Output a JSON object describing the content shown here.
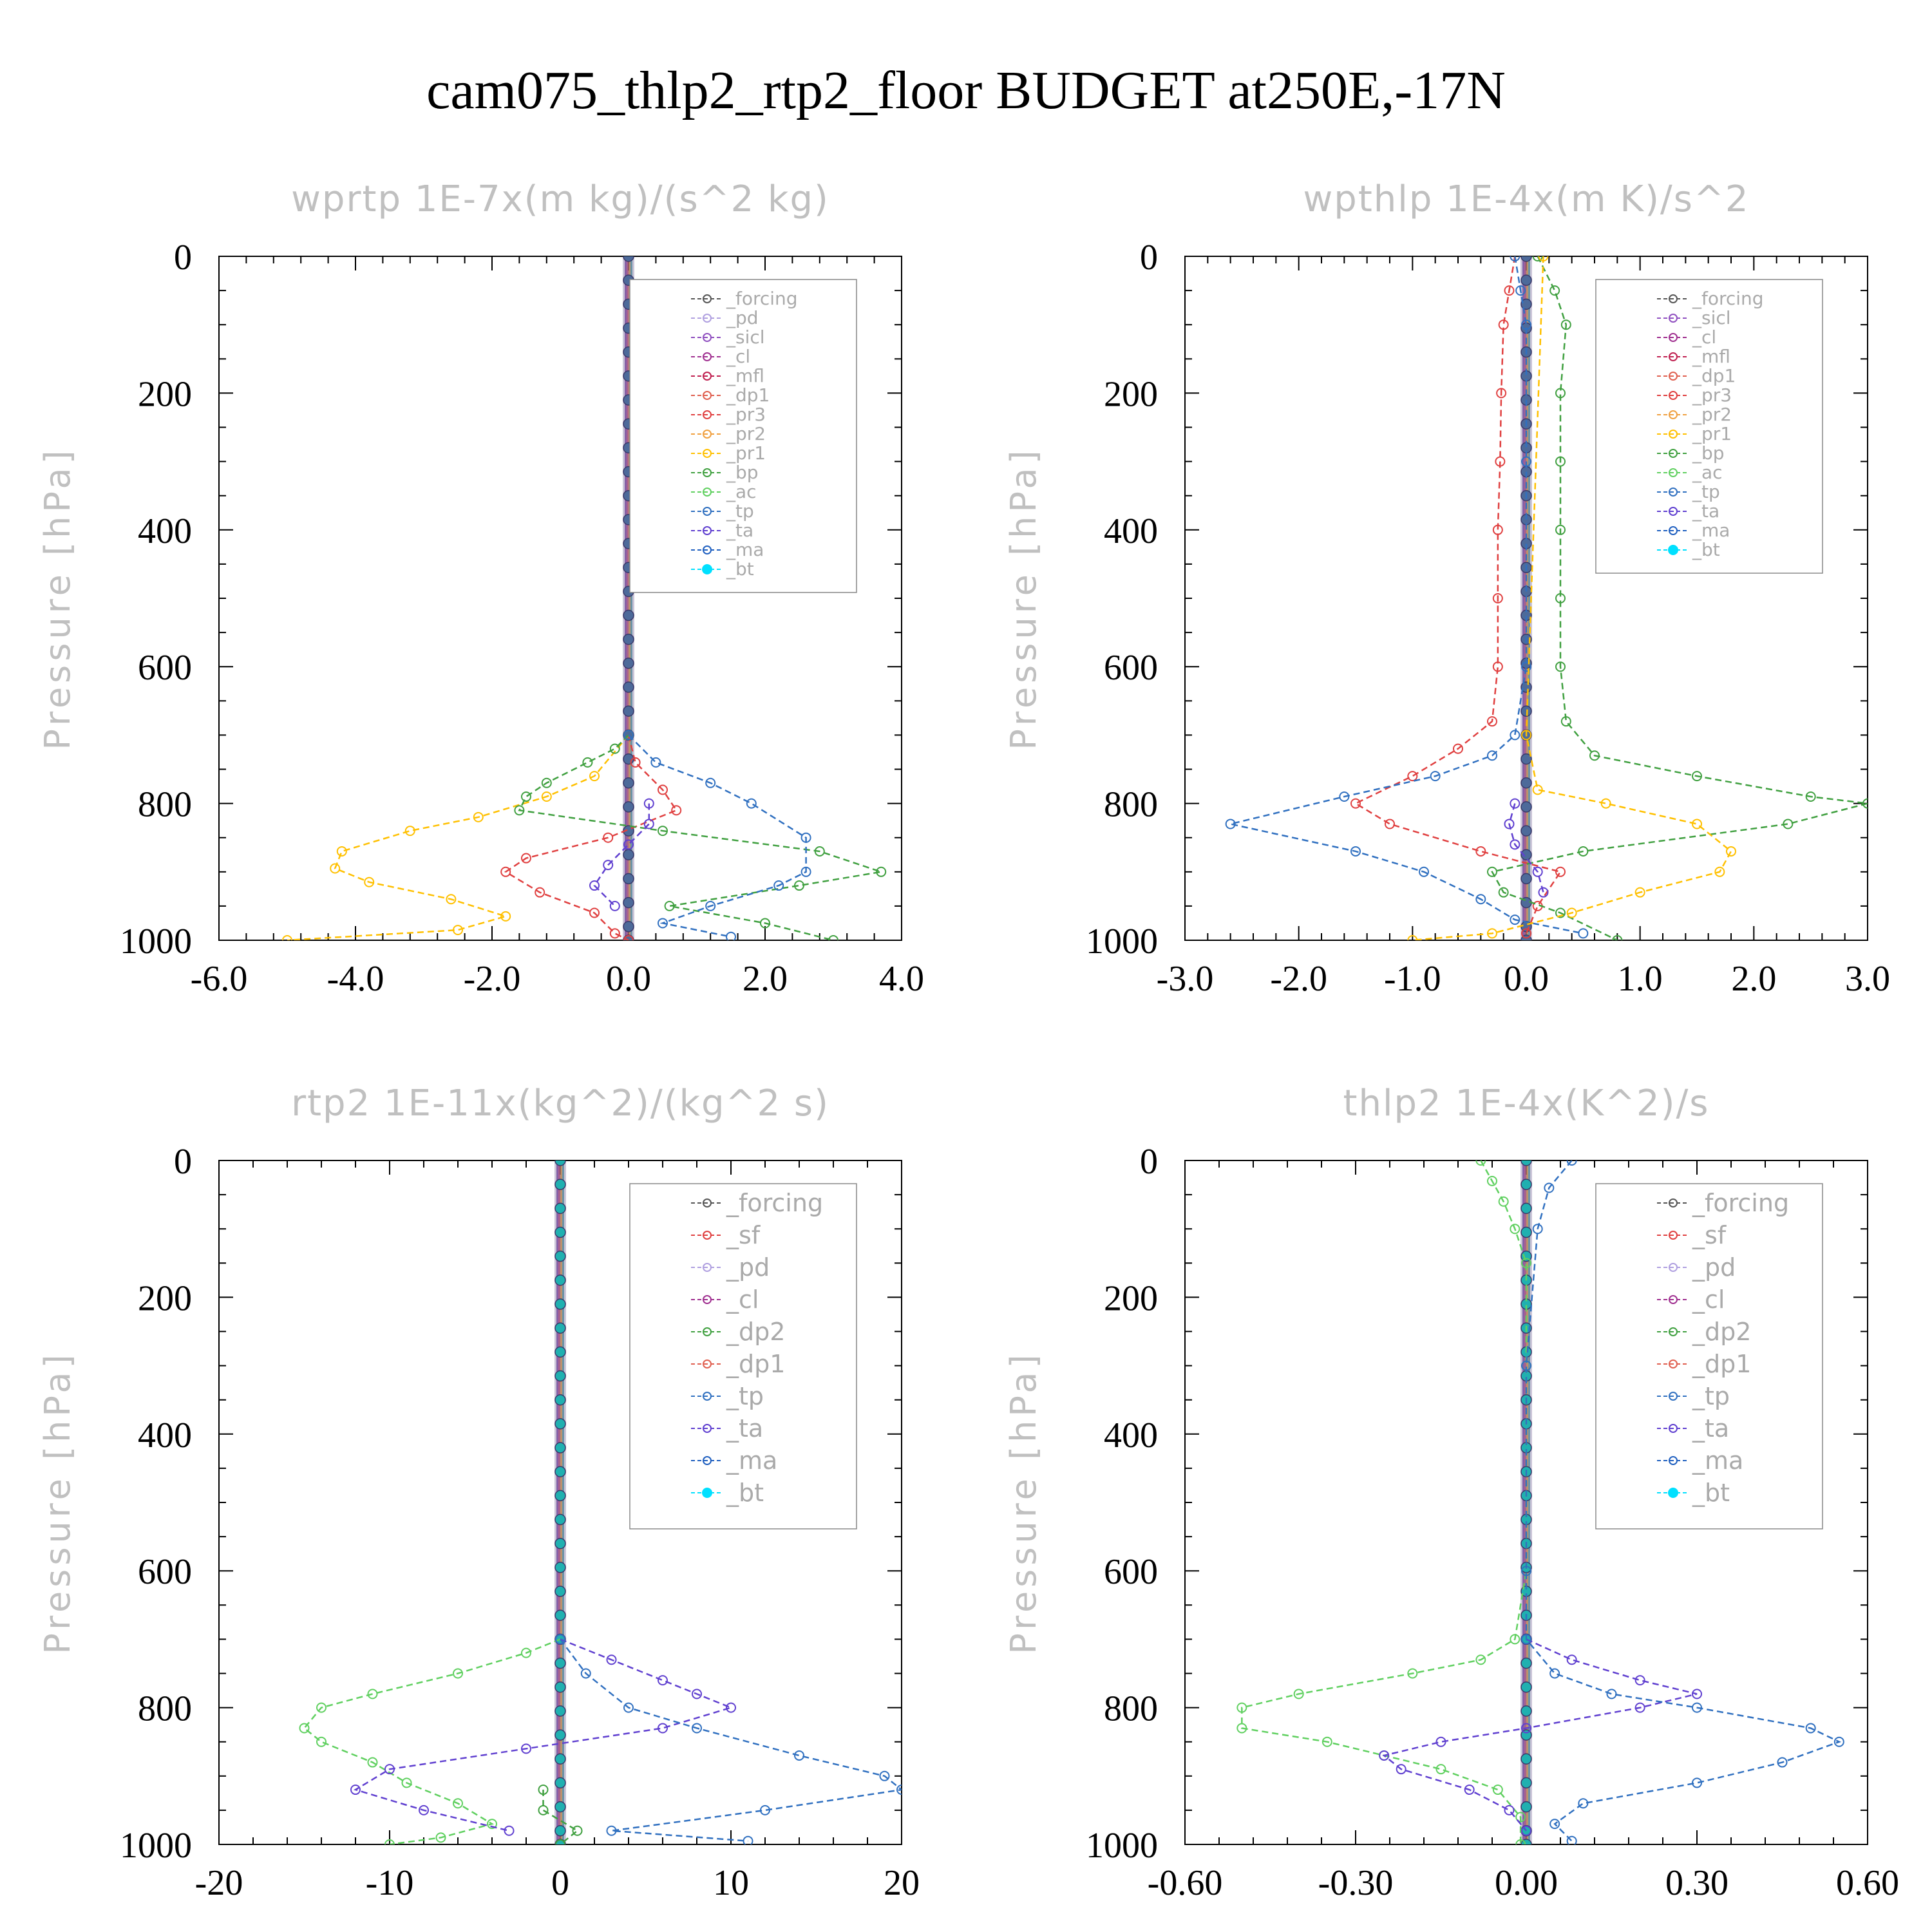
{
  "figure": {
    "title": "cam075_thlp2_rtp2_floor  BUDGET at250E,-17N"
  },
  "chart_data": [
    {
      "type": "line",
      "title": "wprtp   1E-7x(m kg)/(s^2 kg)",
      "ylabel": "Pressure [hPa]",
      "xlim": [
        -6.0,
        4.0
      ],
      "ylim": [
        0,
        1000
      ],
      "y_inverted": true,
      "xticks": [
        "-6.0",
        "-4.0",
        "-2.0",
        "0.0",
        "2.0",
        "4.0"
      ],
      "yticks": [
        "0",
        "200",
        "400",
        "600",
        "800",
        "1000"
      ],
      "legend": {
        "position": "upper-right",
        "entries": [
          "_forcing",
          "_pd",
          "_sicl",
          "_cl",
          "_mfl",
          "_dp1",
          "_pr3",
          "_pr2",
          "_pr1",
          "_bp",
          "_ac",
          "_tp",
          "_ta",
          "_ma",
          "_bt"
        ]
      },
      "series": [
        {
          "name": "_pr1",
          "color": "#ffc000",
          "y": [
            700,
            760,
            790,
            820,
            840,
            870,
            895,
            915,
            940,
            965,
            985,
            1000
          ],
          "values": [
            0,
            -0.5,
            -1.2,
            -2.2,
            -3.2,
            -4.2,
            -4.3,
            -3.8,
            -2.6,
            -1.8,
            -2.5,
            -5.0
          ]
        },
        {
          "name": "_pr3",
          "color": "#e04040",
          "y": [
            700,
            740,
            780,
            810,
            850,
            880,
            900,
            930,
            960,
            990,
            1000
          ],
          "values": [
            0,
            0.1,
            0.5,
            0.7,
            -0.3,
            -1.5,
            -1.8,
            -1.3,
            -0.5,
            -0.2,
            0
          ]
        },
        {
          "name": "_bp",
          "color": "#40a040",
          "y": [
            700,
            720,
            740,
            770,
            790,
            810,
            840,
            870,
            900,
            920,
            950,
            975,
            1000
          ],
          "values": [
            0,
            -0.2,
            -0.6,
            -1.2,
            -1.5,
            -1.6,
            0.5,
            2.8,
            3.7,
            2.5,
            0.6,
            2.0,
            3.0
          ]
        },
        {
          "name": "_tp",
          "color": "#3070c0",
          "y": [
            700,
            740,
            770,
            800,
            850,
            900,
            920,
            950,
            975,
            995
          ],
          "values": [
            0,
            0.4,
            1.2,
            1.8,
            2.6,
            2.6,
            2.2,
            1.2,
            0.5,
            1.5
          ]
        },
        {
          "name": "_ta",
          "color": "#6040d0",
          "y": [
            800,
            830,
            860,
            890,
            920,
            950
          ],
          "values": [
            0.3,
            0.3,
            0,
            -0.3,
            -0.5,
            -0.2
          ]
        }
      ]
    },
    {
      "type": "line",
      "title": "wpthlp   1E-4x(m K)/s^2",
      "ylabel": "Pressure [hPa]",
      "xlim": [
        -3.0,
        3.0
      ],
      "ylim": [
        0,
        1000
      ],
      "y_inverted": true,
      "xticks": [
        "-3.0",
        "-2.0",
        "-1.0",
        "0.0",
        "1.0",
        "2.0",
        "3.0"
      ],
      "yticks": [
        "0",
        "200",
        "400",
        "600",
        "800",
        "1000"
      ],
      "legend": {
        "position": "upper-right",
        "entries": [
          "_forcing",
          "_sicl",
          "_cl",
          "_mfl",
          "_dp1",
          "_pr3",
          "_pr2",
          "_pr1",
          "_bp",
          "_ac",
          "_tp",
          "_ta",
          "_ma",
          "_bt"
        ]
      },
      "series": [
        {
          "name": "_pr3",
          "color": "#e04040",
          "y": [
            0,
            50,
            100,
            200,
            300,
            400,
            500,
            600,
            680,
            720,
            760,
            800,
            830,
            870,
            900,
            950,
            990
          ],
          "values": [
            -0.1,
            -0.15,
            -0.2,
            -0.22,
            -0.23,
            -0.25,
            -0.25,
            -0.25,
            -0.3,
            -0.6,
            -1.0,
            -1.5,
            -1.2,
            -0.4,
            0.3,
            0.1,
            0
          ]
        },
        {
          "name": "_bp",
          "color": "#40a040",
          "y": [
            0,
            50,
            100,
            200,
            300,
            400,
            500,
            600,
            680,
            730,
            760,
            790,
            800,
            830,
            870,
            900,
            930,
            960,
            1000
          ],
          "values": [
            0.1,
            0.25,
            0.35,
            0.3,
            0.3,
            0.3,
            0.3,
            0.3,
            0.35,
            0.6,
            1.5,
            2.5,
            3.0,
            2.3,
            0.5,
            -0.3,
            -0.2,
            0.3,
            0.8
          ]
        },
        {
          "name": "_tp",
          "color": "#3070c0",
          "y": [
            0,
            50,
            100,
            300,
            600,
            700,
            730,
            760,
            790,
            830,
            870,
            900,
            940,
            970,
            990
          ],
          "values": [
            -0.1,
            -0.05,
            0,
            0,
            0,
            -0.1,
            -0.3,
            -0.8,
            -1.6,
            -2.6,
            -1.5,
            -0.9,
            -0.4,
            -0.1,
            0.5
          ]
        },
        {
          "name": "_pr1",
          "color": "#ffc000",
          "y": [
            0,
            700,
            780,
            800,
            830,
            870,
            900,
            930,
            960,
            990,
            1000
          ],
          "values": [
            0.15,
            0,
            0.1,
            0.7,
            1.5,
            1.8,
            1.7,
            1.0,
            0.4,
            -0.3,
            -1.0
          ]
        },
        {
          "name": "_ta",
          "color": "#6040d0",
          "y": [
            800,
            830,
            860,
            900,
            930
          ],
          "values": [
            -0.1,
            -0.15,
            -0.1,
            0.1,
            0.15
          ]
        }
      ]
    },
    {
      "type": "line",
      "title": "rtp2   1E-11x(kg^2)/(kg^2 s)",
      "ylabel": "Pressure [hPa]",
      "xlim": [
        -20,
        20
      ],
      "ylim": [
        0,
        1000
      ],
      "y_inverted": true,
      "xticks": [
        "-20",
        "-10",
        "0",
        "10",
        "20"
      ],
      "yticks": [
        "0",
        "200",
        "400",
        "600",
        "800",
        "1000"
      ],
      "legend": {
        "position": "upper-right",
        "entries": [
          "_forcing",
          "_sf",
          "_pd",
          "_cl",
          "_dp2",
          "_dp1",
          "_tp",
          "_ta",
          "_ma",
          "_bt"
        ]
      },
      "series": [
        {
          "name": "_dp1",
          "color": "#60d060",
          "y": [
            700,
            720,
            750,
            780,
            800,
            830,
            850,
            880,
            910,
            940,
            970,
            990,
            1000
          ],
          "values": [
            0,
            -2,
            -6,
            -11,
            -14,
            -15,
            -14,
            -11,
            -9,
            -6,
            -4,
            -7,
            -10
          ]
        },
        {
          "name": "_ta",
          "color": "#6040d0",
          "y": [
            700,
            730,
            760,
            780,
            800,
            830,
            860,
            890,
            920,
            950,
            980
          ],
          "values": [
            0,
            3,
            6,
            8,
            10,
            6,
            -2,
            -10,
            -12,
            -8,
            -3
          ]
        },
        {
          "name": "_tp",
          "color": "#3070c0",
          "y": [
            700,
            750,
            800,
            830,
            870,
            900,
            920,
            950,
            980,
            995
          ],
          "values": [
            0,
            1.5,
            4,
            8,
            14,
            19,
            20,
            12,
            3,
            11
          ]
        },
        {
          "name": "_dp2",
          "color": "#40a040",
          "y": [
            920,
            950,
            980,
            1000
          ],
          "values": [
            -1,
            -1,
            1,
            0
          ]
        }
      ]
    },
    {
      "type": "line",
      "title": "thlp2   1E-4x(K^2)/s",
      "ylabel": "Pressure [hPa]",
      "xlim": [
        -0.6,
        0.6
      ],
      "ylim": [
        0,
        1000
      ],
      "y_inverted": true,
      "xticks": [
        "-0.60",
        "-0.30",
        "0.00",
        "0.30",
        "0.60"
      ],
      "yticks": [
        "0",
        "200",
        "400",
        "600",
        "800",
        "1000"
      ],
      "legend": {
        "position": "upper-right",
        "entries": [
          "_forcing",
          "_sf",
          "_pd",
          "_cl",
          "_dp2",
          "_dp1",
          "_tp",
          "_ta",
          "_ma",
          "_bt"
        ]
      },
      "series": [
        {
          "name": "_dp1",
          "color": "#60d060",
          "y": [
            0,
            30,
            60,
            100,
            150,
            300,
            600,
            700,
            730,
            750,
            780,
            800,
            830,
            850,
            870,
            890,
            920,
            960,
            1000
          ],
          "values": [
            -0.08,
            -0.06,
            -0.04,
            -0.02,
            0,
            0,
            0,
            -0.02,
            -0.08,
            -0.2,
            -0.4,
            -0.5,
            -0.5,
            -0.35,
            -0.25,
            -0.15,
            -0.05,
            -0.01,
            -0.01
          ]
        },
        {
          "name": "_ta",
          "color": "#6040d0",
          "y": [
            700,
            730,
            760,
            780,
            800,
            830,
            850,
            870,
            890,
            920,
            950,
            980
          ],
          "values": [
            0,
            0.08,
            0.2,
            0.3,
            0.2,
            0,
            -0.15,
            -0.25,
            -0.22,
            -0.1,
            -0.03,
            0
          ]
        },
        {
          "name": "_tp",
          "color": "#3070c0",
          "y": [
            0,
            40,
            100,
            300,
            600,
            700,
            750,
            780,
            800,
            830,
            850,
            880,
            910,
            940,
            970,
            995
          ],
          "values": [
            0.08,
            0.04,
            0.02,
            0,
            0,
            0,
            0.05,
            0.15,
            0.3,
            0.5,
            0.55,
            0.45,
            0.3,
            0.1,
            0.05,
            0.08
          ]
        }
      ]
    }
  ]
}
